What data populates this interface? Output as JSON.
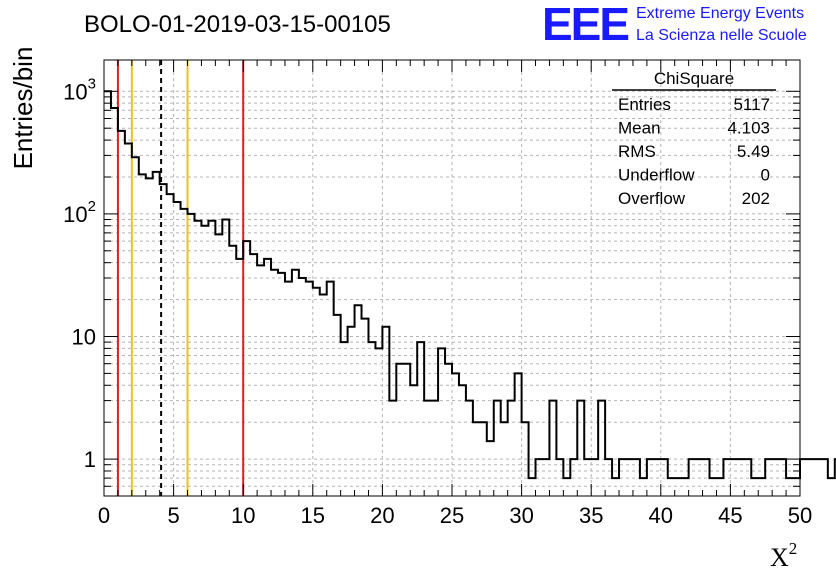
{
  "chart_data": {
    "type": "histogram",
    "title": "BOLO-01-2019-03-15-00105",
    "xlabel": "X",
    "xlabel_superscript": "2",
    "ylabel": "Entries/bin",
    "xlim": [
      0,
      50
    ],
    "ylim": [
      0.5,
      1800
    ],
    "yscale": "log",
    "grid": true,
    "bin_width": 0.5,
    "x_ticks": [
      0,
      5,
      10,
      15,
      20,
      25,
      30,
      35,
      40,
      45,
      50
    ],
    "y_ticks": [
      {
        "value": 1,
        "label": "1"
      },
      {
        "value": 10,
        "label": "10"
      },
      {
        "value": 100,
        "label": "10",
        "sup": "2"
      },
      {
        "value": 1000,
        "label": "10",
        "sup": "3"
      }
    ],
    "bin_counts": [
      1000,
      730,
      475,
      375,
      290,
      210,
      195,
      220,
      175,
      145,
      125,
      110,
      100,
      88,
      80,
      88,
      68,
      90,
      55,
      43,
      60,
      47,
      38,
      43,
      35,
      33,
      28,
      35,
      30,
      28,
      25,
      22,
      28,
      15,
      9,
      12,
      18,
      14,
      9,
      8,
      12,
      3,
      6,
      6,
      4,
      9,
      3,
      3,
      8,
      6,
      5,
      4,
      3,
      2,
      2,
      1.4,
      3,
      2,
      3,
      5,
      2,
      0.7,
      1,
      1,
      3,
      1,
      0.7,
      1,
      3,
      1,
      1,
      3,
      1,
      0.7,
      1,
      1,
      1,
      0.7,
      1,
      1,
      1,
      0.7,
      0.7,
      0.7,
      1,
      1,
      1,
      0.7,
      0.7,
      1,
      1,
      1,
      1,
      0.7,
      0.7,
      1,
      1,
      1,
      0.7,
      0.7,
      1,
      1,
      1,
      1,
      0.7,
      1,
      1,
      1,
      1,
      1,
      1,
      0.7,
      1,
      1,
      1,
      0.7,
      0.7,
      1,
      3,
      1,
      1,
      0.7,
      0.7,
      1,
      1,
      1,
      1,
      1
    ],
    "reference_lines": [
      {
        "x": 1,
        "color": "#e02020",
        "style": "solid"
      },
      {
        "x": 2,
        "color": "#f0c020",
        "style": "solid"
      },
      {
        "x": 4.103,
        "color": "#000000",
        "style": "dashed"
      },
      {
        "x": 6,
        "color": "#f0c020",
        "style": "solid"
      },
      {
        "x": 10,
        "color": "#e02020",
        "style": "solid"
      }
    ],
    "line_color": "#000000"
  },
  "stats_box": {
    "title": "ChiSquare",
    "rows": [
      {
        "label": "Entries",
        "value": "5117"
      },
      {
        "label": "Mean",
        "value": "4.103"
      },
      {
        "label": "RMS",
        "value": "5.49"
      },
      {
        "label": "Underflow",
        "value": "0"
      },
      {
        "label": "Overflow",
        "value": "202"
      }
    ]
  },
  "logo": {
    "mark": "EEE",
    "line1": "Extreme Energy Events",
    "line2": "La Scienza nelle Scuole",
    "color": "#1a1aff"
  }
}
